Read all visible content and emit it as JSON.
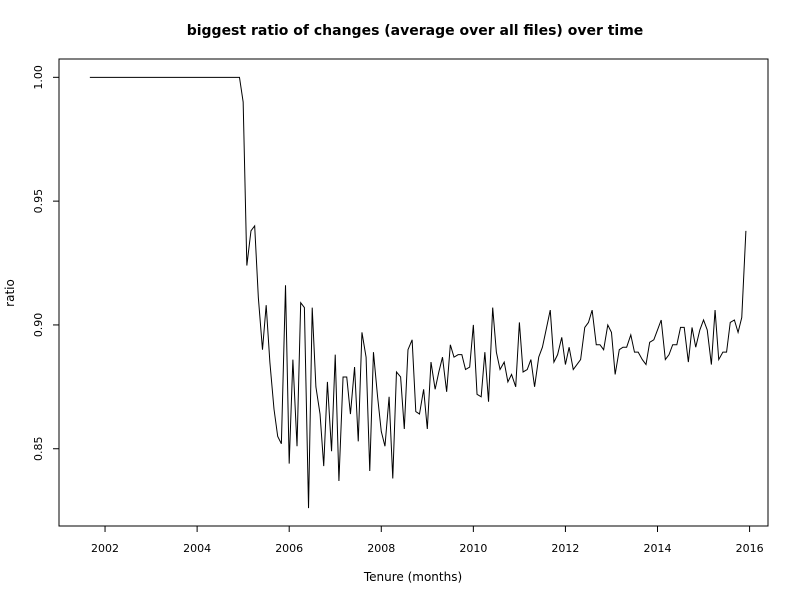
{
  "chart_data": {
    "type": "line",
    "title": "biggest ratio of changes (average over all files) over time",
    "xlabel": "Tenure (months)",
    "ylabel": "ratio",
    "xlim": [
      2001.0,
      2016.4
    ],
    "ylim": [
      0.8188,
      1.0074
    ],
    "xticks": [
      2002,
      2004,
      2006,
      2008,
      2010,
      2012,
      2014,
      2016
    ],
    "yticks": [
      0.85,
      0.9,
      0.95,
      1.0
    ],
    "ytick_labels": [
      "0.85",
      "0.90",
      "0.95",
      "1.00"
    ],
    "grid": false,
    "series": [
      {
        "x": [
          2001.67,
          2001.75,
          2001.83,
          2001.92,
          2002.0,
          2002.08,
          2002.17,
          2002.25,
          2002.33,
          2002.42,
          2002.5,
          2002.58,
          2002.67,
          2002.75,
          2002.83,
          2002.92,
          2003.0,
          2003.08,
          2003.17,
          2003.25,
          2003.33,
          2003.42,
          2003.5,
          2003.58,
          2003.67,
          2003.75,
          2003.83,
          2003.92,
          2004.0,
          2004.08,
          2004.17,
          2004.25,
          2004.33,
          2004.42,
          2004.5,
          2004.58,
          2004.67,
          2004.75,
          2004.83,
          2004.92,
          2005.0,
          2005.08,
          2005.17,
          2005.25,
          2005.33,
          2005.42,
          2005.5,
          2005.58,
          2005.67,
          2005.75,
          2005.83,
          2005.92,
          2006.0,
          2006.08,
          2006.17,
          2006.25,
          2006.33,
          2006.42,
          2006.5,
          2006.58,
          2006.67,
          2006.75,
          2006.83,
          2006.92,
          2007.0,
          2007.08,
          2007.17,
          2007.25,
          2007.33,
          2007.42,
          2007.5,
          2007.58,
          2007.67,
          2007.75,
          2007.83,
          2007.92,
          2008.0,
          2008.08,
          2008.17,
          2008.25,
          2008.33,
          2008.42,
          2008.5,
          2008.58,
          2008.67,
          2008.75,
          2008.83,
          2008.92,
          2009.0,
          2009.08,
          2009.17,
          2009.25,
          2009.33,
          2009.42,
          2009.5,
          2009.58,
          2009.67,
          2009.75,
          2009.83,
          2009.92,
          2010.0,
          2010.08,
          2010.17,
          2010.25,
          2010.33,
          2010.42,
          2010.5,
          2010.58,
          2010.67,
          2010.75,
          2010.83,
          2010.92,
          2011.0,
          2011.08,
          2011.17,
          2011.25,
          2011.33,
          2011.42,
          2011.5,
          2011.58,
          2011.67,
          2011.75,
          2011.83,
          2011.92,
          2012.0,
          2012.08,
          2012.17,
          2012.25,
          2012.33,
          2012.42,
          2012.5,
          2012.58,
          2012.67,
          2012.75,
          2012.83,
          2012.92,
          2013.0,
          2013.08,
          2013.17,
          2013.25,
          2013.33,
          2013.42,
          2013.5,
          2013.58,
          2013.67,
          2013.75,
          2013.83,
          2013.92,
          2014.0,
          2014.08,
          2014.17,
          2014.25,
          2014.33,
          2014.42,
          2014.5,
          2014.58,
          2014.67,
          2014.75,
          2014.83,
          2014.92,
          2015.0,
          2015.08,
          2015.17,
          2015.25,
          2015.33,
          2015.42,
          2015.5,
          2015.58,
          2015.67,
          2015.75,
          2015.83,
          2015.92
        ],
        "y": [
          1.0,
          1.0,
          1.0,
          1.0,
          1.0,
          1.0,
          1.0,
          1.0,
          1.0,
          1.0,
          1.0,
          1.0,
          1.0,
          1.0,
          1.0,
          1.0,
          1.0,
          1.0,
          1.0,
          1.0,
          1.0,
          1.0,
          1.0,
          1.0,
          1.0,
          1.0,
          1.0,
          1.0,
          1.0,
          1.0,
          1.0,
          1.0,
          1.0,
          1.0,
          1.0,
          1.0,
          1.0,
          1.0,
          1.0,
          1.0,
          0.99,
          0.924,
          0.938,
          0.94,
          0.911,
          0.89,
          0.908,
          0.885,
          0.866,
          0.855,
          0.852,
          0.916,
          0.844,
          0.886,
          0.851,
          0.909,
          0.907,
          0.826,
          0.907,
          0.875,
          0.864,
          0.843,
          0.877,
          0.849,
          0.888,
          0.837,
          0.879,
          0.879,
          0.864,
          0.883,
          0.853,
          0.897,
          0.887,
          0.841,
          0.889,
          0.871,
          0.857,
          0.851,
          0.871,
          0.838,
          0.881,
          0.879,
          0.858,
          0.89,
          0.894,
          0.865,
          0.864,
          0.874,
          0.858,
          0.885,
          0.874,
          0.881,
          0.887,
          0.873,
          0.892,
          0.887,
          0.888,
          0.888,
          0.882,
          0.883,
          0.9,
          0.872,
          0.871,
          0.889,
          0.869,
          0.907,
          0.889,
          0.882,
          0.885,
          0.877,
          0.88,
          0.875,
          0.901,
          0.881,
          0.882,
          0.886,
          0.875,
          0.887,
          0.891,
          0.898,
          0.906,
          0.885,
          0.888,
          0.895,
          0.884,
          0.891,
          0.882,
          0.884,
          0.886,
          0.899,
          0.901,
          0.906,
          0.892,
          0.892,
          0.89,
          0.9,
          0.897,
          0.88,
          0.89,
          0.891,
          0.891,
          0.896,
          0.889,
          0.889,
          0.886,
          0.884,
          0.893,
          0.894,
          0.898,
          0.902,
          0.886,
          0.888,
          0.892,
          0.892,
          0.899,
          0.899,
          0.885,
          0.899,
          0.891,
          0.898,
          0.902,
          0.898,
          0.884,
          0.906,
          0.886,
          0.889,
          0.889,
          0.901,
          0.902,
          0.897,
          0.903,
          0.938
        ]
      }
    ]
  }
}
